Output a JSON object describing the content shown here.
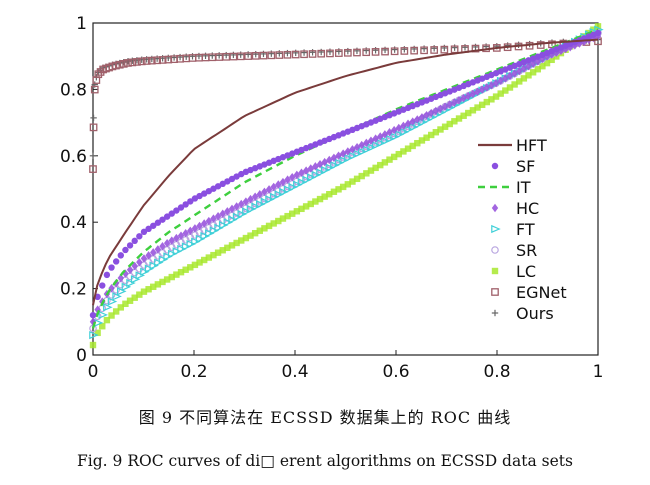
{
  "chart_data": {
    "type": "line",
    "xlim": [
      0,
      1
    ],
    "ylim": [
      0,
      1
    ],
    "xticks": [
      {
        "value": 0,
        "label": "0"
      },
      {
        "value": 0.2,
        "label": "0.2"
      },
      {
        "value": 0.4,
        "label": "0.4"
      },
      {
        "value": 0.6,
        "label": "0.6"
      },
      {
        "value": 0.8,
        "label": "0.8"
      },
      {
        "value": 1,
        "label": "1"
      }
    ],
    "yticks": [
      {
        "value": 0,
        "label": "0"
      },
      {
        "value": 0.2,
        "label": "0.2"
      },
      {
        "value": 0.4,
        "label": "0.4"
      },
      {
        "value": 0.6,
        "label": "0.6"
      },
      {
        "value": 0.8,
        "label": "0.8"
      },
      {
        "value": 1,
        "label": "1"
      }
    ],
    "legend_position": "right",
    "series": [
      {
        "name": "HFT",
        "color": "#7a3b3b",
        "style": "line",
        "x": [
          0,
          0.01,
          0.03,
          0.06,
          0.1,
          0.15,
          0.2,
          0.3,
          0.4,
          0.5,
          0.6,
          0.7,
          0.8,
          0.9,
          1.0
        ],
        "y": [
          0.15,
          0.22,
          0.29,
          0.36,
          0.45,
          0.54,
          0.62,
          0.72,
          0.79,
          0.84,
          0.88,
          0.905,
          0.925,
          0.94,
          0.95
        ]
      },
      {
        "name": "SF",
        "color": "#8a4fe0",
        "style": "marker",
        "marker": "dot",
        "x": [
          0,
          0.01,
          0.03,
          0.06,
          0.1,
          0.15,
          0.2,
          0.3,
          0.4,
          0.5,
          0.6,
          0.7,
          0.8,
          0.9,
          1.0
        ],
        "y": [
          0.12,
          0.18,
          0.25,
          0.31,
          0.37,
          0.42,
          0.47,
          0.55,
          0.61,
          0.67,
          0.73,
          0.79,
          0.85,
          0.91,
          0.97
        ]
      },
      {
        "name": "IT",
        "color": "#3ecf3e",
        "style": "dashed",
        "x": [
          0,
          0.01,
          0.03,
          0.06,
          0.1,
          0.15,
          0.2,
          0.3,
          0.4,
          0.5,
          0.6,
          0.7,
          0.8,
          0.9,
          1.0
        ],
        "y": [
          0.08,
          0.13,
          0.19,
          0.25,
          0.31,
          0.37,
          0.42,
          0.52,
          0.6,
          0.67,
          0.74,
          0.8,
          0.86,
          0.92,
          0.98
        ]
      },
      {
        "name": "HC",
        "color": "#9955dd",
        "style": "marker",
        "marker": "diamond",
        "x": [
          0,
          0.01,
          0.03,
          0.06,
          0.1,
          0.15,
          0.2,
          0.3,
          0.4,
          0.5,
          0.6,
          0.7,
          0.8,
          0.9,
          1.0
        ],
        "y": [
          0.1,
          0.14,
          0.19,
          0.24,
          0.29,
          0.34,
          0.38,
          0.46,
          0.54,
          0.61,
          0.68,
          0.75,
          0.82,
          0.9,
          0.96
        ]
      },
      {
        "name": "FT",
        "color": "#40d0d8",
        "style": "marker",
        "marker": "triangle",
        "x": [
          0,
          0.01,
          0.03,
          0.06,
          0.1,
          0.15,
          0.2,
          0.3,
          0.4,
          0.5,
          0.6,
          0.7,
          0.8,
          0.9,
          1.0
        ],
        "y": [
          0.06,
          0.1,
          0.15,
          0.2,
          0.25,
          0.3,
          0.34,
          0.43,
          0.51,
          0.59,
          0.66,
          0.74,
          0.82,
          0.9,
          0.98
        ]
      },
      {
        "name": "SR",
        "color": "#b9a6e0",
        "style": "marker",
        "marker": "circle",
        "x": [
          0,
          0.01,
          0.03,
          0.06,
          0.1,
          0.15,
          0.2,
          0.3,
          0.4,
          0.5,
          0.6,
          0.7,
          0.8,
          0.9,
          1.0
        ],
        "y": [
          0.08,
          0.12,
          0.17,
          0.22,
          0.27,
          0.32,
          0.36,
          0.44,
          0.52,
          0.6,
          0.67,
          0.75,
          0.82,
          0.9,
          0.97
        ]
      },
      {
        "name": "LC",
        "color": "#a8e82e",
        "style": "marker",
        "marker": "square",
        "x": [
          0,
          0.01,
          0.03,
          0.06,
          0.1,
          0.15,
          0.2,
          0.3,
          0.4,
          0.5,
          0.6,
          0.7,
          0.8,
          0.9,
          1.0
        ],
        "y": [
          0.03,
          0.07,
          0.11,
          0.15,
          0.19,
          0.23,
          0.27,
          0.35,
          0.43,
          0.51,
          0.6,
          0.69,
          0.78,
          0.88,
          0.99
        ]
      },
      {
        "name": "EGNet",
        "color": "#a0606a",
        "style": "marker",
        "marker": "hollow-square",
        "x": [
          0,
          0.002,
          0.005,
          0.01,
          0.02,
          0.04,
          0.07,
          0.1,
          0.15,
          0.2,
          0.3,
          0.4,
          0.5,
          0.6,
          0.7,
          0.8,
          0.9,
          1.0
        ],
        "y": [
          0.56,
          0.78,
          0.82,
          0.845,
          0.86,
          0.87,
          0.88,
          0.885,
          0.89,
          0.895,
          0.9,
          0.905,
          0.91,
          0.915,
          0.92,
          0.925,
          0.935,
          0.945
        ]
      },
      {
        "name": "Ours",
        "color": "#666666",
        "style": "marker",
        "marker": "plus",
        "x": [
          0,
          0.002,
          0.005,
          0.01,
          0.02,
          0.04,
          0.07,
          0.1,
          0.15,
          0.2,
          0.3,
          0.4,
          0.5,
          0.6,
          0.7,
          0.8,
          0.9,
          1.0
        ],
        "y": [
          0.6,
          0.8,
          0.83,
          0.85,
          0.865,
          0.875,
          0.885,
          0.89,
          0.895,
          0.9,
          0.905,
          0.91,
          0.915,
          0.92,
          0.925,
          0.93,
          0.94,
          0.95
        ]
      }
    ]
  },
  "caption": {
    "chinese": "图 9 不同算法在 ECSSD 数据集上的 ROC 曲线",
    "english": "Fig. 9 ROC curves of di□ erent algorithms on ECSSD data sets"
  }
}
